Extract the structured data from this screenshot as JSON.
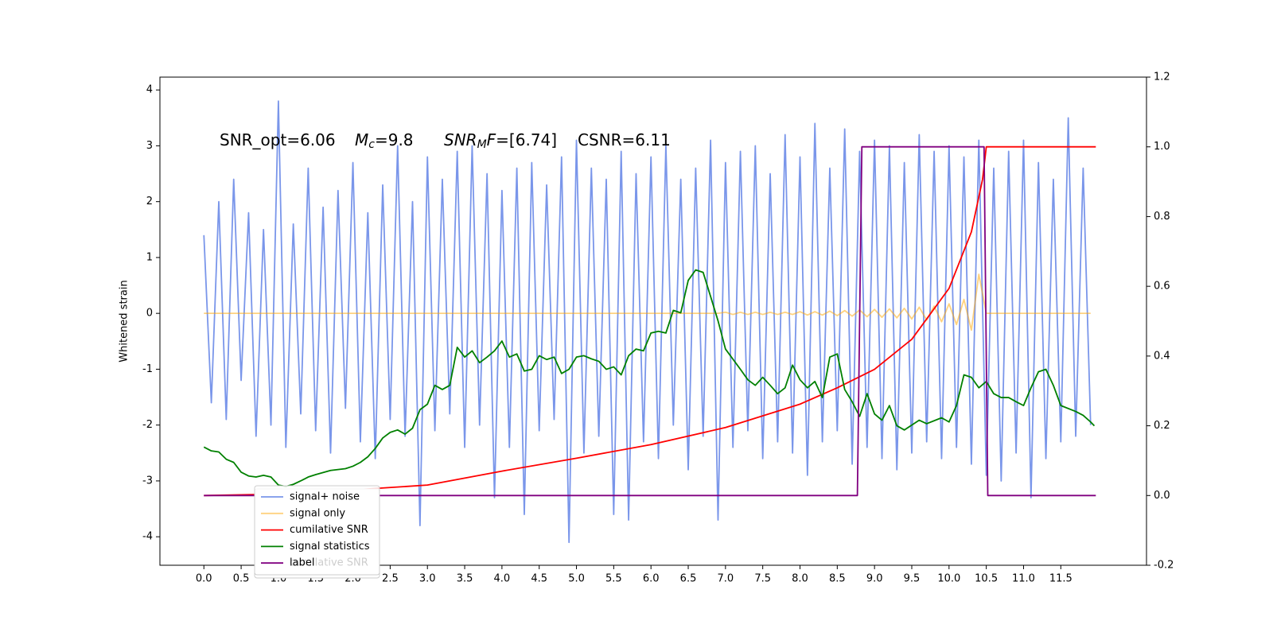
{
  "chart_data": {
    "type": "line",
    "y_label": "Whitened strain",
    "annotation": [
      "SNR_opt=6.06",
      "M",
      "c",
      "=9.8",
      "SNR",
      "M",
      "F",
      "=[6.74]",
      "CSNR=6.11"
    ],
    "xlim": [
      -0.59,
      12.65
    ],
    "ylim": [
      -4.51,
      4.23
    ],
    "y2lim": [
      -0.2,
      1.2
    ],
    "xticks": [
      {
        "value": 0,
        "label": "0.0"
      },
      0.5,
      {
        "value": 1,
        "label": "1.0"
      },
      1.5,
      {
        "value": 2,
        "label": "2.0"
      },
      2.5,
      {
        "value": 3,
        "label": "3.0"
      },
      3.5,
      {
        "value": 4,
        "label": "4.0"
      },
      4.5,
      {
        "value": 5,
        "label": "5.0"
      },
      5.5,
      {
        "value": 6,
        "label": "6.0"
      },
      6.5,
      {
        "value": 7,
        "label": "7.0"
      },
      7.5,
      {
        "value": 8,
        "label": "8.0"
      },
      8.5,
      {
        "value": 9,
        "label": "9.0"
      },
      9.5,
      {
        "value": 10,
        "label": "10.0"
      },
      10.5,
      {
        "value": 11,
        "label": "11.0"
      },
      11.5
    ],
    "yticks": [
      -4,
      -3,
      -2,
      -1,
      0,
      1,
      2,
      3,
      4
    ],
    "y2ticks": [
      -0.2,
      {
        "value": 0,
        "label": "0.0"
      },
      0.2,
      0.4,
      0.6,
      0.8,
      {
        "value": 1,
        "label": "1.0"
      },
      1.2
    ],
    "grid": false,
    "legend": "lower left",
    "x": [
      0.0,
      0.1,
      0.2,
      0.3,
      0.4,
      0.5,
      0.6,
      0.7,
      0.8,
      0.9,
      1.0,
      1.1,
      1.2,
      1.3,
      1.4,
      1.5,
      1.6,
      1.7,
      1.8,
      1.9,
      2.0,
      2.1,
      2.2,
      2.3,
      2.4,
      2.5,
      2.6,
      2.7,
      2.8,
      2.9,
      3.0,
      3.1,
      3.2,
      3.3,
      3.4,
      3.5,
      3.6,
      3.7,
      3.8,
      3.9,
      4.0,
      4.1,
      4.2,
      4.3,
      4.4,
      4.5,
      4.6,
      4.7,
      4.8,
      4.9,
      5.0,
      5.1,
      5.2,
      5.3,
      5.4,
      5.5,
      5.6,
      5.7,
      5.8,
      5.9,
      6.0,
      6.1,
      6.2,
      6.3,
      6.4,
      6.5,
      6.6,
      6.7,
      6.8,
      6.9,
      7.0,
      7.1,
      7.2,
      7.3,
      7.4,
      7.5,
      7.6,
      7.7,
      7.8,
      7.9,
      8.0,
      8.1,
      8.2,
      8.3,
      8.4,
      8.5,
      8.6,
      8.7,
      8.8,
      8.9,
      9.0,
      9.1,
      9.2,
      9.3,
      9.4,
      9.5,
      9.6,
      9.7,
      9.8,
      9.9,
      10.0,
      10.1,
      10.2,
      10.3,
      10.4,
      10.5,
      10.6,
      10.7,
      10.8,
      10.9,
      11.0,
      11.1,
      11.2,
      11.3,
      11.4,
      11.5,
      11.6,
      11.7,
      11.8,
      11.9
    ],
    "series": [
      {
        "name": "signal+ noise",
        "color": "#4169e1",
        "opacity": 0.7,
        "values": [
          1.4,
          -1.6,
          2.0,
          -1.9,
          2.4,
          -1.2,
          1.8,
          -2.2,
          1.5,
          -2.0,
          3.8,
          -2.4,
          1.6,
          -1.8,
          2.6,
          -2.1,
          1.9,
          -2.5,
          2.2,
          -1.7,
          2.7,
          -2.3,
          1.8,
          -2.6,
          2.3,
          -1.9,
          3.0,
          -2.2,
          2.0,
          -3.8,
          2.8,
          -2.1,
          2.4,
          -1.8,
          2.9,
          -2.4,
          3.0,
          -2.0,
          2.5,
          -3.3,
          2.2,
          -2.4,
          2.6,
          -3.6,
          2.7,
          -2.1,
          2.3,
          -1.9,
          2.8,
          -4.1,
          3.1,
          -2.5,
          2.6,
          -2.2,
          2.4,
          -3.6,
          2.9,
          -3.7,
          2.5,
          -2.3,
          2.8,
          -2.6,
          3.0,
          -2.0,
          2.4,
          -2.8,
          2.6,
          -2.2,
          3.1,
          -3.7,
          2.7,
          -2.4,
          2.9,
          -2.1,
          3.0,
          -2.6,
          2.5,
          -2.3,
          3.2,
          -2.5,
          2.8,
          -2.9,
          3.4,
          -2.3,
          2.6,
          -2.1,
          3.3,
          -2.7,
          2.9,
          -2.4,
          3.1,
          -2.6,
          3.0,
          -2.8,
          2.7,
          -2.5,
          3.2,
          -2.3,
          2.9,
          -2.6,
          3.0,
          -2.4,
          2.8,
          -2.7,
          3.1,
          -2.9,
          2.6,
          -3.0,
          2.9,
          -2.5,
          3.1,
          -3.3,
          2.7,
          -2.6,
          2.4,
          -2.3,
          3.5,
          -2.2,
          2.6,
          -2.0
        ]
      },
      {
        "name": "signal only",
        "color": "#ffa500",
        "opacity": 0.5,
        "values": [
          0,
          0,
          0,
          0,
          0,
          0,
          0,
          0,
          0,
          0,
          0,
          0,
          0,
          0,
          0,
          0,
          0,
          0,
          0,
          0,
          0,
          0,
          0,
          0,
          0,
          0,
          0,
          0,
          0,
          0,
          0,
          0,
          0,
          0,
          0,
          0,
          0,
          0,
          0,
          0,
          0,
          0,
          0,
          0,
          0,
          0,
          0,
          0,
          0,
          0,
          0,
          0,
          0,
          0,
          0,
          0,
          0,
          0,
          0,
          0,
          0,
          0,
          0,
          0,
          0,
          0,
          0,
          0,
          0,
          0,
          0.02,
          -0.02,
          0.02,
          -0.02,
          0.02,
          -0.02,
          0.02,
          -0.02,
          0.02,
          -0.02,
          0.03,
          -0.03,
          0.03,
          -0.03,
          0.04,
          -0.04,
          0.05,
          -0.05,
          0.06,
          -0.06,
          0.07,
          -0.07,
          0.08,
          -0.08,
          0.09,
          -0.1,
          0.11,
          -0.12,
          0.13,
          -0.15,
          0.17,
          -0.2,
          0.25,
          -0.3,
          0.7,
          0,
          0,
          0,
          0,
          0,
          0,
          0,
          0,
          0,
          0,
          0,
          0,
          0,
          0,
          0
        ]
      },
      {
        "name": "cumilative SNR",
        "color": "#ff0000",
        "axis": "y2",
        "x": [
          0,
          1.0,
          1.5,
          2.0,
          3.0,
          4.0,
          5.0,
          6.0,
          7.0,
          8.0,
          8.5,
          9.0,
          9.5,
          10.0,
          10.3,
          10.45,
          10.5,
          11.97
        ],
        "values": [
          0,
          0.004,
          0.008,
          0.016,
          0.03,
          0.07,
          0.107,
          0.146,
          0.195,
          0.262,
          0.309,
          0.362,
          0.448,
          0.594,
          0.756,
          0.907,
          1.0,
          1.0
        ]
      },
      {
        "name": "signal statistics",
        "color": "#008000",
        "axis": "y2",
        "x": [
          0.0,
          0.1,
          0.2,
          0.3,
          0.4,
          0.5,
          0.6,
          0.7,
          0.8,
          0.9,
          1.0,
          1.1,
          1.2,
          1.3,
          1.4,
          1.5,
          1.7,
          1.9,
          2.0,
          2.1,
          2.2,
          2.3,
          2.4,
          2.5,
          2.6,
          2.7,
          2.8,
          2.9,
          3.0,
          3.1,
          3.2,
          3.3,
          3.4,
          3.5,
          3.6,
          3.7,
          3.8,
          3.9,
          4.0,
          4.1,
          4.2,
          4.3,
          4.4,
          4.5,
          4.6,
          4.7,
          4.8,
          4.9,
          5.0,
          5.1,
          5.2,
          5.3,
          5.4,
          5.5,
          5.6,
          5.7,
          5.8,
          5.9,
          6.0,
          6.1,
          6.2,
          6.3,
          6.4,
          6.5,
          6.6,
          6.7,
          6.8,
          6.9,
          7.0,
          7.2,
          7.3,
          7.4,
          7.5,
          7.6,
          7.7,
          7.8,
          7.9,
          8.0,
          8.1,
          8.2,
          8.3,
          8.4,
          8.5,
          8.6,
          8.7,
          8.8,
          8.9,
          9.0,
          9.1,
          9.2,
          9.3,
          9.4,
          9.6,
          9.7,
          9.9,
          10.0,
          10.1,
          10.2,
          10.3,
          10.4,
          10.5,
          10.6,
          10.7,
          10.8,
          10.9,
          11.0,
          11.1,
          11.2,
          11.3,
          11.4,
          11.5,
          11.7,
          11.8,
          11.9,
          11.95
        ],
        "values": [
          0.139,
          0.128,
          0.125,
          0.104,
          0.095,
          0.067,
          0.056,
          0.053,
          0.058,
          0.053,
          0.03,
          0.026,
          0.032,
          0.042,
          0.053,
          0.06,
          0.072,
          0.077,
          0.084,
          0.095,
          0.111,
          0.135,
          0.165,
          0.181,
          0.188,
          0.176,
          0.193,
          0.246,
          0.262,
          0.316,
          0.304,
          0.316,
          0.425,
          0.397,
          0.415,
          0.381,
          0.397,
          0.415,
          0.443,
          0.397,
          0.406,
          0.357,
          0.362,
          0.401,
          0.39,
          0.397,
          0.35,
          0.362,
          0.397,
          0.401,
          0.392,
          0.385,
          0.362,
          0.369,
          0.346,
          0.401,
          0.42,
          0.415,
          0.466,
          0.471,
          0.466,
          0.531,
          0.524,
          0.617,
          0.647,
          0.64,
          0.571,
          0.501,
          0.42,
          0.362,
          0.332,
          0.316,
          0.339,
          0.316,
          0.292,
          0.309,
          0.374,
          0.332,
          0.309,
          0.327,
          0.281,
          0.397,
          0.406,
          0.304,
          0.269,
          0.227,
          0.292,
          0.234,
          0.216,
          0.258,
          0.2,
          0.188,
          0.216,
          0.206,
          0.223,
          0.211,
          0.258,
          0.346,
          0.339,
          0.309,
          0.327,
          0.292,
          0.281,
          0.281,
          0.269,
          0.258,
          0.309,
          0.355,
          0.362,
          0.316,
          0.258,
          0.241,
          0.23,
          0.211,
          0.2
        ]
      },
      {
        "name": "label",
        "color": "#800080",
        "axis": "y2",
        "x": [
          0,
          8.77,
          8.83,
          10.47,
          10.52,
          11.97
        ],
        "values": [
          0,
          0,
          1,
          1,
          0,
          0
        ]
      }
    ]
  }
}
